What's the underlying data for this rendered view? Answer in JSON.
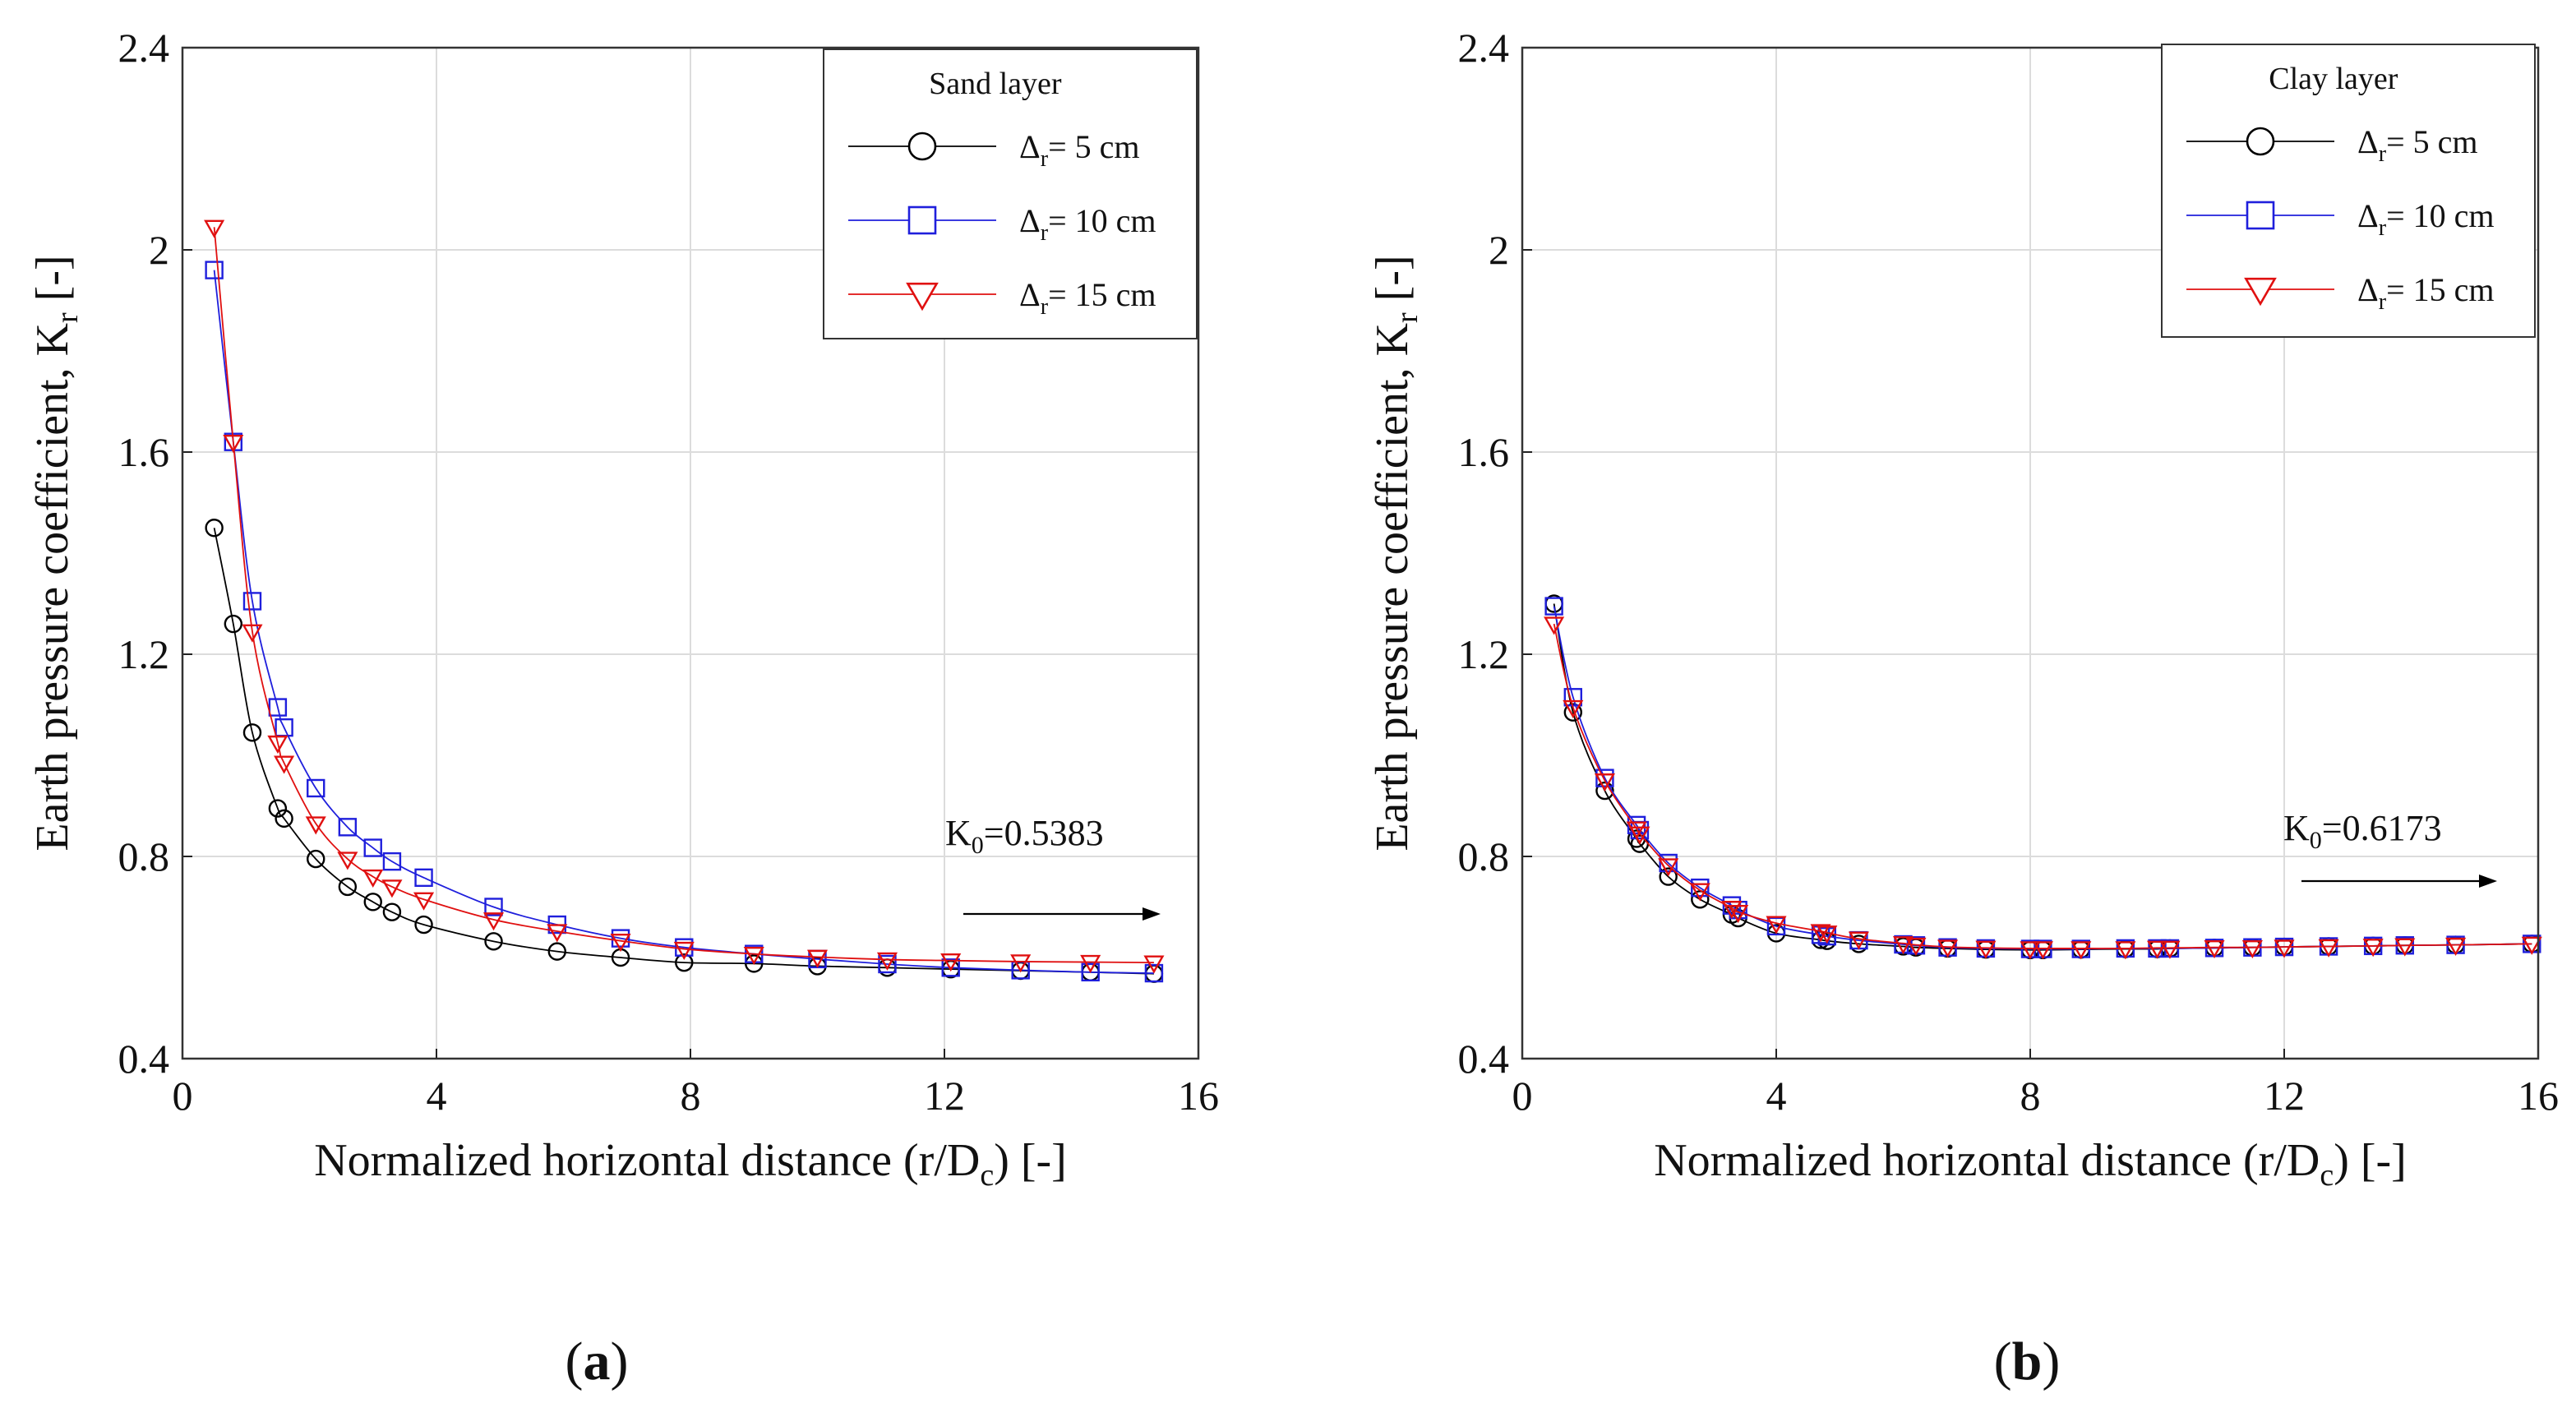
{
  "figure": {
    "caption_a": "a",
    "caption_b": "b"
  },
  "series_style": [
    {
      "color": "#000000",
      "marker": "circle"
    },
    {
      "color": "#1f1fdc",
      "marker": "square"
    },
    {
      "color": "#e01010",
      "marker": "triangle-down"
    }
  ],
  "chart_data": [
    {
      "type": "line",
      "panel": "a",
      "xlabel": "Normalized horizontal distance (r/D_c) [-]",
      "xlabel_main": "Normalized horizontal distance (r/D",
      "xlabel_sub": "c",
      "xlabel_end": ") [-]",
      "ylabel_main": "Earth pressure coefficient, K",
      "ylabel_sub": "r",
      "ylabel_end": " [-]",
      "xlim": [
        0,
        16
      ],
      "ylim": [
        0.4,
        2.4
      ],
      "xticks": [
        0,
        4,
        8,
        12,
        16
      ],
      "yticks": [
        0.4,
        0.8,
        1.2,
        1.6,
        2.0,
        2.4
      ],
      "xtick_labels": [
        "0",
        "4",
        "8",
        "12",
        "16"
      ],
      "ytick_labels": [
        "0.4",
        "0.8",
        "1.2",
        "1.6",
        "2",
        "2.4"
      ],
      "grid": true,
      "legend_title": "Sand layer",
      "legend_position": "top-right",
      "annotation": {
        "prefix": "K",
        "sub": "0",
        "text": "=0.5383",
        "value": 0.5383
      },
      "series": [
        {
          "name": "Δr= 5 cm",
          "label_main": "Δ",
          "label_sub": "r",
          "label_rest": "= 5 cm",
          "x": [
            0.5,
            0.8,
            1.1,
            1.5,
            1.6,
            2.1,
            2.6,
            3.0,
            3.3,
            3.8,
            4.9,
            5.9,
            6.9,
            7.9,
            9.0,
            10.0,
            11.1,
            12.1,
            13.2,
            14.3,
            15.3
          ],
          "y": [
            1.45,
            1.26,
            1.045,
            0.895,
            0.875,
            0.795,
            0.74,
            0.71,
            0.69,
            0.665,
            0.632,
            0.612,
            0.6,
            0.59,
            0.588,
            0.583,
            0.58,
            0.577,
            0.574,
            0.571,
            0.568
          ]
        },
        {
          "name": "Δr= 10 cm",
          "label_main": "Δ",
          "label_sub": "r",
          "label_rest": "= 10 cm",
          "x": [
            0.5,
            0.8,
            1.1,
            1.5,
            1.6,
            2.1,
            2.6,
            3.0,
            3.3,
            3.8,
            4.9,
            5.9,
            6.9,
            7.9,
            9.0,
            10.0,
            11.1,
            12.1,
            13.2,
            14.3,
            15.3
          ],
          "y": [
            1.96,
            1.62,
            1.305,
            1.095,
            1.055,
            0.935,
            0.858,
            0.817,
            0.79,
            0.758,
            0.7,
            0.665,
            0.638,
            0.62,
            0.607,
            0.597,
            0.587,
            0.58,
            0.575,
            0.571,
            0.569
          ]
        },
        {
          "name": "Δr= 15 cm",
          "label_main": "Δ",
          "label_sub": "r",
          "label_rest": "= 15 cm",
          "x": [
            0.5,
            0.8,
            1.1,
            1.5,
            1.6,
            2.1,
            2.6,
            3.0,
            3.3,
            3.8,
            4.9,
            5.9,
            6.9,
            7.9,
            9.0,
            10.0,
            11.1,
            12.1,
            13.2,
            14.3,
            15.3
          ],
          "y": [
            2.045,
            1.62,
            1.245,
            1.025,
            0.985,
            0.865,
            0.795,
            0.76,
            0.74,
            0.715,
            0.675,
            0.652,
            0.633,
            0.617,
            0.607,
            0.601,
            0.596,
            0.594,
            0.592,
            0.591,
            0.59
          ]
        }
      ]
    },
    {
      "type": "line",
      "panel": "b",
      "xlabel": "Normalized horizontal distance (r/D_c) [-]",
      "xlabel_main": "Normalized horizontal distance (r/D",
      "xlabel_sub": "c",
      "xlabel_end": ") [-]",
      "ylabel_main": "Earth pressure coefficient, K",
      "ylabel_sub": "r",
      "ylabel_end": " [-]",
      "xlim": [
        0,
        16
      ],
      "ylim": [
        0.4,
        2.4
      ],
      "xticks": [
        0,
        4,
        8,
        12,
        16
      ],
      "yticks": [
        0.4,
        0.8,
        1.2,
        1.6,
        2.0,
        2.4
      ],
      "xtick_labels": [
        "0",
        "4",
        "8",
        "12",
        "16"
      ],
      "ytick_labels": [
        "0.4",
        "0.8",
        "1.2",
        "1.6",
        "2",
        "2.4"
      ],
      "grid": true,
      "legend_title": "Clay layer",
      "legend_position": "top-right",
      "annotation": {
        "prefix": "K",
        "sub": "0",
        "text": "=0.6173",
        "value": 0.6173
      },
      "series": [
        {
          "name": "Δr= 5 cm",
          "label_main": "Δ",
          "label_sub": "r",
          "label_rest": "= 5 cm",
          "x": [
            0.5,
            0.8,
            1.3,
            1.8,
            1.85,
            2.3,
            2.8,
            3.3,
            3.4,
            4.0,
            4.7,
            4.8,
            5.3,
            6.0,
            6.2,
            6.7,
            7.3,
            8.0,
            8.2,
            8.8,
            9.5,
            10.0,
            10.2,
            10.9,
            11.5,
            12.0,
            12.7,
            13.4,
            13.9,
            14.7,
            15.9
          ],
          "y": [
            1.3,
            1.085,
            0.93,
            0.835,
            0.825,
            0.76,
            0.715,
            0.685,
            0.678,
            0.648,
            0.635,
            0.633,
            0.627,
            0.622,
            0.62,
            0.618,
            0.616,
            0.615,
            0.615,
            0.616,
            0.617,
            0.617,
            0.618,
            0.619,
            0.62,
            0.621,
            0.622,
            0.623,
            0.624,
            0.625,
            0.627
          ]
        },
        {
          "name": "Δr= 10 cm",
          "label_main": "Δ",
          "label_sub": "r",
          "label_rest": "= 10 cm",
          "x": [
            0.5,
            0.8,
            1.3,
            1.8,
            1.85,
            2.3,
            2.8,
            3.3,
            3.4,
            4.0,
            4.7,
            4.8,
            5.3,
            6.0,
            6.2,
            6.7,
            7.3,
            8.0,
            8.2,
            8.8,
            9.5,
            10.0,
            10.2,
            10.9,
            11.5,
            12.0,
            12.7,
            13.4,
            13.9,
            14.7,
            15.9
          ],
          "y": [
            1.295,
            1.115,
            0.955,
            0.862,
            0.852,
            0.787,
            0.738,
            0.703,
            0.694,
            0.662,
            0.645,
            0.642,
            0.634,
            0.626,
            0.624,
            0.62,
            0.618,
            0.617,
            0.617,
            0.617,
            0.618,
            0.618,
            0.618,
            0.619,
            0.62,
            0.621,
            0.622,
            0.623,
            0.624,
            0.625,
            0.627
          ]
        },
        {
          "name": "Δr= 15 cm",
          "label_main": "Δ",
          "label_sub": "r",
          "label_rest": "= 15 cm",
          "x": [
            0.5,
            0.8,
            1.3,
            1.8,
            1.85,
            2.3,
            2.8,
            3.3,
            3.4,
            4.0,
            4.7,
            4.8,
            5.3,
            6.0,
            6.2,
            6.7,
            7.3,
            8.0,
            8.2,
            8.8,
            9.5,
            10.0,
            10.2,
            10.9,
            11.5,
            12.0,
            12.7,
            13.4,
            13.9,
            14.7,
            15.9
          ],
          "y": [
            1.26,
            1.095,
            0.95,
            0.855,
            0.845,
            0.782,
            0.733,
            0.698,
            0.69,
            0.668,
            0.652,
            0.649,
            0.637,
            0.628,
            0.625,
            0.621,
            0.619,
            0.618,
            0.618,
            0.618,
            0.618,
            0.619,
            0.619,
            0.62,
            0.62,
            0.621,
            0.622,
            0.623,
            0.624,
            0.625,
            0.627
          ]
        }
      ]
    }
  ]
}
